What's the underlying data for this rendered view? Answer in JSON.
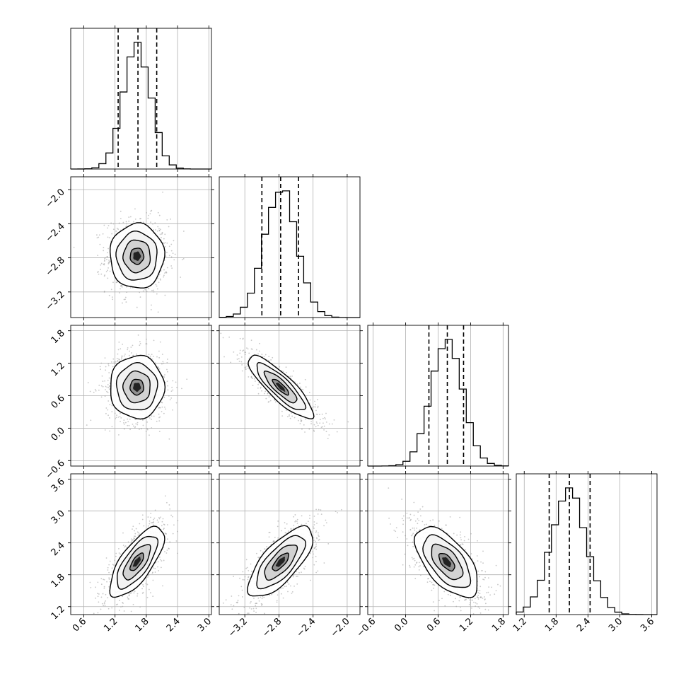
{
  "chart_data": {
    "type": "corner",
    "title": "",
    "grid": true,
    "colors": {
      "line": "#000000",
      "points": "#9a9a9a",
      "grid": "#b0b0b0",
      "density_light": "#ffffff",
      "density_dark": "#000000"
    },
    "parameters": [
      {
        "index": 0,
        "label": "",
        "range": [
          0.35,
          3.05
        ],
        "ticks": [
          0.6,
          1.2,
          1.8,
          2.4,
          3.0
        ],
        "tick_labels": [
          "0.6",
          "1.2",
          "1.8",
          "2.4",
          "3.0"
        ],
        "mean": 1.62,
        "std": 0.26,
        "quantiles": [
          1.26,
          1.64,
          2.0
        ]
      },
      {
        "index": 1,
        "label": "",
        "range": [
          -3.5,
          -1.85
        ],
        "ticks": [
          -3.2,
          -2.8,
          -2.4,
          -2.0
        ],
        "tick_labels": [
          "−3.2",
          "−2.8",
          "−2.4",
          "−2.0"
        ],
        "mean": -2.78,
        "std": 0.19,
        "quantiles": [
          -3.0,
          -2.78,
          -2.57
        ]
      },
      {
        "index": 2,
        "label": "",
        "range": [
          -0.7,
          1.9
        ],
        "ticks": [
          -0.6,
          0.0,
          0.6,
          1.2,
          1.8
        ],
        "tick_labels": [
          "−0.6",
          "0.0",
          "0.6",
          "1.2",
          "1.8"
        ],
        "mean": 0.76,
        "std": 0.29,
        "quantiles": [
          0.43,
          0.77,
          1.07
        ]
      },
      {
        "index": 3,
        "label": "",
        "range": [
          1.05,
          3.7
        ],
        "ticks": [
          1.2,
          1.8,
          2.4,
          3.0,
          3.6
        ],
        "tick_labels": [
          "1.2",
          "1.8",
          "2.4",
          "3.0",
          "3.6"
        ],
        "mean": 2.04,
        "std": 0.33,
        "quantiles": [
          1.67,
          2.05,
          2.44
        ]
      }
    ],
    "correlations": [
      {
        "x": 0,
        "y": 1,
        "rho": 0.0
      },
      {
        "x": 0,
        "y": 2,
        "rho": 0.0
      },
      {
        "x": 1,
        "y": 2,
        "rho": -0.85
      },
      {
        "x": 0,
        "y": 3,
        "rho": 0.72
      },
      {
        "x": 1,
        "y": 3,
        "rho": 0.72
      },
      {
        "x": 2,
        "y": 3,
        "rho": -0.6
      }
    ],
    "contour_levels_sigma": [
      0.5,
      1.0,
      1.5,
      2.0
    ]
  }
}
